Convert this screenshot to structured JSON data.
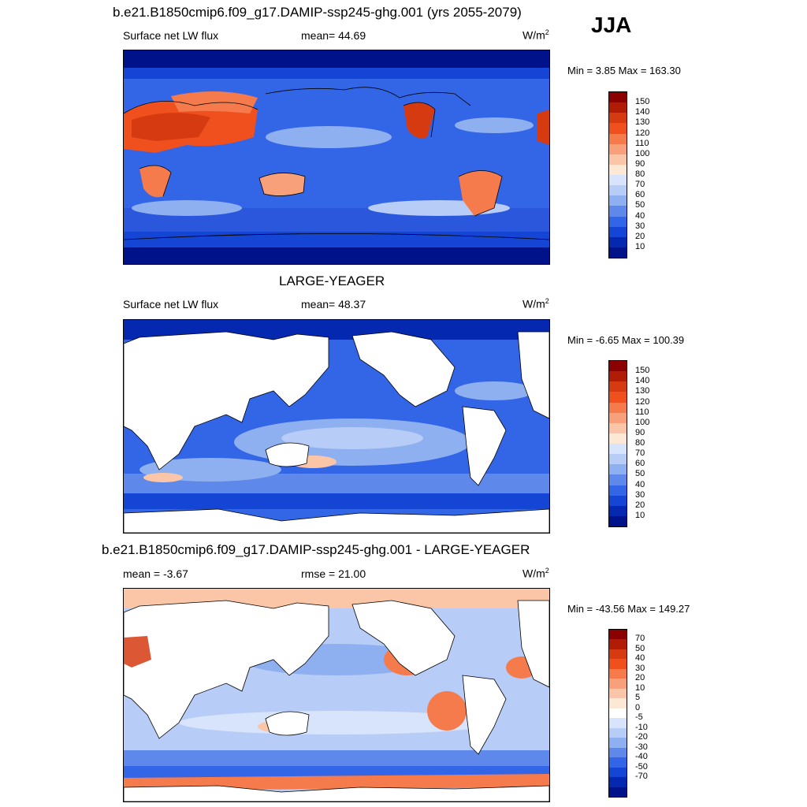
{
  "season": "JJA",
  "panel1": {
    "title": "b.e21.B1850cmip6.f09_g17.DAMIP-ssp245-ghg.001 (yrs 2055-2079)",
    "left": "Surface net LW flux",
    "center": "mean=  44.69",
    "units": "W/m",
    "units_sup": "2",
    "minmax": "Min =   3.85 Max = 163.30",
    "levels": [
      "150",
      "140",
      "130",
      "120",
      "110",
      "100",
      "90",
      "80",
      "70",
      "60",
      "50",
      "40",
      "30",
      "20",
      "10"
    ]
  },
  "panel2": {
    "title": "LARGE-YEAGER",
    "left": "Surface net LW flux",
    "center": "mean=  48.37",
    "units": "W/m",
    "units_sup": "2",
    "minmax": "Min =  -6.65 Max = 100.39",
    "levels": [
      "150",
      "140",
      "130",
      "120",
      "110",
      "100",
      "90",
      "80",
      "70",
      "60",
      "50",
      "40",
      "30",
      "20",
      "10"
    ]
  },
  "panel3": {
    "title": "b.e21.B1850cmip6.f09_g17.DAMIP-ssp245-ghg.001 - LARGE-YEAGER",
    "left": "mean =  -3.67",
    "center": "rmse =  21.00",
    "units": "W/m",
    "units_sup": "2",
    "minmax": "Min = -43.56 Max = 149.27",
    "levels": [
      "70",
      "50",
      "40",
      "30",
      "20",
      "10",
      "5",
      "0",
      "-5",
      "-10",
      "-20",
      "-30",
      "-40",
      "-50",
      "-70"
    ]
  },
  "colors": {
    "abs_scale": [
      "#8b0000",
      "#b01c06",
      "#d63a10",
      "#f0501e",
      "#f57a4c",
      "#f8a07a",
      "#fbc6a8",
      "#fde8d6",
      "#d8e4fb",
      "#b7ccf6",
      "#8fb0f0",
      "#5e88ea",
      "#3366e6",
      "#1445d4",
      "#0428b0",
      "#00128a"
    ],
    "diff_scale": [
      "#8b0000",
      "#b01c06",
      "#d63a10",
      "#f0501e",
      "#f57a4c",
      "#f8a07a",
      "#fbc6a8",
      "#fde8d6",
      "#ffffff",
      "#d8e4fb",
      "#b7ccf6",
      "#8fb0f0",
      "#5e88ea",
      "#3366e6",
      "#1445d4",
      "#0428b0",
      "#00128a"
    ]
  }
}
